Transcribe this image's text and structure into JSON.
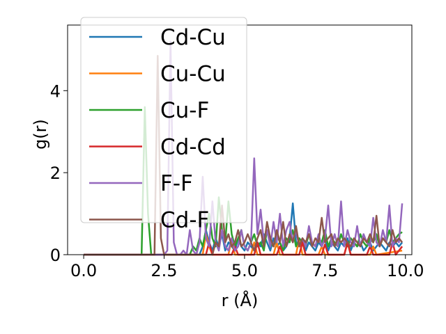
{
  "chart_data": {
    "type": "line",
    "title": "",
    "xlabel": "r (Å)",
    "ylabel": "g(r)",
    "xlim": [
      -0.5,
      10.2
    ],
    "ylim": [
      0,
      5.6
    ],
    "xticks": [
      0.0,
      2.5,
      5.0,
      7.5,
      10.0
    ],
    "xtick_labels": [
      "0.0",
      "2.5",
      "5.0",
      "7.5",
      "10.0"
    ],
    "yticks": [
      0,
      2,
      4
    ],
    "ytick_labels": [
      "0",
      "2",
      "4"
    ],
    "grid": false,
    "legend_position": "upper-left",
    "series": [
      {
        "name": "Cd-Cu",
        "color": "#1f77b4",
        "x": [
          0.0,
          3.6,
          3.7,
          3.8,
          3.9,
          4.0,
          4.1,
          4.2,
          4.3,
          4.4,
          4.5,
          4.6,
          4.7,
          4.8,
          4.9,
          5.0,
          5.1,
          5.2,
          5.3,
          5.4,
          5.5,
          5.6,
          5.7,
          5.8,
          5.9,
          6.0,
          6.1,
          6.2,
          6.3,
          6.4,
          6.5,
          6.6,
          6.7,
          6.8,
          6.9,
          7.0,
          7.1,
          7.2,
          7.3,
          7.4,
          7.5,
          7.6,
          7.7,
          7.8,
          7.9,
          8.0,
          8.1,
          8.2,
          8.3,
          8.4,
          8.5,
          8.6,
          8.7,
          8.8,
          8.9,
          9.0,
          9.1,
          9.2,
          9.3,
          9.4,
          9.5,
          9.6,
          9.7,
          9.8,
          9.9
        ],
        "y": [
          0.0,
          0.0,
          0.2,
          0.6,
          0.3,
          0.1,
          0.4,
          0.2,
          0.5,
          0.1,
          0.3,
          0.2,
          0.1,
          0.4,
          0.2,
          0.1,
          0.3,
          0.2,
          0.1,
          0.3,
          0.2,
          0.5,
          0.3,
          0.1,
          0.4,
          0.2,
          0.3,
          0.1,
          0.2,
          0.4,
          1.25,
          0.3,
          0.2,
          0.4,
          0.1,
          0.3,
          0.2,
          0.1,
          0.3,
          0.2,
          0.4,
          0.1,
          0.3,
          0.2,
          0.1,
          0.3,
          0.2,
          0.4,
          0.1,
          0.3,
          0.2,
          0.3,
          0.1,
          0.2,
          0.3,
          0.1,
          0.2,
          0.3,
          0.2,
          0.1,
          0.3,
          0.2,
          0.3,
          0.2,
          0.3
        ]
      },
      {
        "name": "Cu-Cu",
        "color": "#ff7f0e",
        "x": [
          0.0,
          3.7,
          3.8,
          3.9,
          4.0,
          4.5,
          4.6,
          4.7,
          5.2,
          5.3,
          5.4,
          5.9,
          6.0,
          6.1,
          6.6,
          6.7,
          6.8,
          7.3,
          7.4,
          7.5,
          8.1,
          8.2,
          8.3,
          8.9,
          9.0,
          9.1,
          9.9
        ],
        "y": [
          0.0,
          0.0,
          0.5,
          0.2,
          0.0,
          0.0,
          0.4,
          0.0,
          0.0,
          0.3,
          0.0,
          0.0,
          0.3,
          0.0,
          0.0,
          0.4,
          0.0,
          0.0,
          0.2,
          0.0,
          0.0,
          0.3,
          0.0,
          0.0,
          0.2,
          0.0,
          0.1
        ]
      },
      {
        "name": "Cu-F",
        "color": "#2ca02c",
        "x": [
          0.0,
          1.8,
          1.9,
          2.0,
          2.1,
          2.2,
          3.3,
          3.4,
          3.5,
          3.6,
          3.7,
          3.8,
          3.9,
          4.0,
          4.1,
          4.2,
          4.3,
          4.4,
          4.5,
          4.6,
          4.7,
          4.8,
          4.9,
          5.0,
          5.1,
          5.2,
          5.3,
          5.4,
          5.5,
          5.6,
          5.7,
          5.8,
          5.9,
          6.0,
          6.1,
          6.2,
          6.3,
          6.4,
          6.5,
          6.6,
          6.7,
          6.8,
          6.9,
          7.0,
          7.1,
          7.2,
          7.3,
          7.4,
          7.5,
          7.6,
          7.7,
          7.8,
          7.9,
          8.0,
          8.1,
          8.2,
          8.3,
          8.4,
          8.5,
          8.6,
          8.7,
          8.8,
          8.9,
          9.0,
          9.1,
          9.2,
          9.3,
          9.4,
          9.5,
          9.6,
          9.7,
          9.8,
          9.9
        ],
        "y": [
          0.0,
          0.0,
          3.6,
          1.0,
          0.0,
          0.0,
          0.0,
          0.2,
          0.1,
          0.4,
          0.2,
          0.6,
          1.0,
          0.4,
          0.2,
          1.4,
          0.6,
          0.3,
          1.3,
          0.5,
          0.2,
          0.4,
          0.6,
          0.2,
          0.1,
          0.3,
          0.5,
          0.2,
          0.3,
          0.1,
          0.6,
          0.3,
          0.2,
          0.5,
          0.3,
          0.1,
          0.4,
          0.3,
          0.6,
          0.2,
          0.4,
          0.3,
          0.2,
          0.5,
          0.3,
          0.2,
          0.4,
          0.3,
          0.6,
          0.2,
          0.4,
          0.3,
          0.2,
          0.5,
          0.3,
          0.2,
          0.4,
          0.3,
          0.2,
          0.5,
          0.3,
          0.2,
          0.4,
          0.3,
          0.5,
          0.2,
          0.4,
          0.3,
          0.6,
          0.3,
          0.4,
          0.5,
          0.55
        ]
      },
      {
        "name": "Cd-Cd",
        "color": "#d62728",
        "x": [
          0.0,
          3.8,
          3.9,
          4.0,
          4.6,
          4.7,
          4.8,
          5.3,
          5.4,
          5.5,
          6.0,
          6.1,
          6.2,
          6.7,
          6.8,
          6.9,
          7.4,
          7.5,
          7.6,
          8.1,
          8.2,
          8.3,
          8.8,
          8.9,
          9.0,
          9.5,
          9.6,
          9.7,
          9.9
        ],
        "y": [
          0.0,
          0.0,
          0.3,
          0.0,
          0.0,
          0.2,
          0.0,
          0.0,
          0.3,
          0.0,
          0.0,
          0.2,
          0.0,
          0.0,
          0.3,
          0.0,
          0.0,
          0.25,
          0.0,
          0.0,
          0.3,
          0.0,
          0.0,
          0.2,
          0.0,
          0.0,
          0.3,
          0.0,
          0.2
        ]
      },
      {
        "name": "F-F",
        "color": "#9467bd",
        "x": [
          0.0,
          2.5,
          2.6,
          2.7,
          2.8,
          2.9,
          3.0,
          3.1,
          3.2,
          3.3,
          3.4,
          3.5,
          3.6,
          3.7,
          3.8,
          3.9,
          4.0,
          4.1,
          4.2,
          4.3,
          4.4,
          4.5,
          4.6,
          4.7,
          4.8,
          4.9,
          5.0,
          5.1,
          5.2,
          5.3,
          5.4,
          5.5,
          5.6,
          5.7,
          5.8,
          5.9,
          6.0,
          6.1,
          6.2,
          6.3,
          6.4,
          6.5,
          6.6,
          6.7,
          6.8,
          6.9,
          7.0,
          7.1,
          7.2,
          7.3,
          7.4,
          7.5,
          7.6,
          7.7,
          7.8,
          7.9,
          8.0,
          8.1,
          8.2,
          8.3,
          8.4,
          8.5,
          8.6,
          8.7,
          8.8,
          8.9,
          9.0,
          9.1,
          9.2,
          9.3,
          9.4,
          9.5,
          9.6,
          9.7,
          9.8,
          9.9
        ],
        "y": [
          0.0,
          0.0,
          0.1,
          5.2,
          0.3,
          0.0,
          0.0,
          0.1,
          0.0,
          0.6,
          0.1,
          0.0,
          0.3,
          1.9,
          0.4,
          0.2,
          1.3,
          0.3,
          0.1,
          0.6,
          0.2,
          0.1,
          0.4,
          0.1,
          0.2,
          0.6,
          0.2,
          0.1,
          0.3,
          2.35,
          0.5,
          1.1,
          0.3,
          0.6,
          0.2,
          0.8,
          0.3,
          1.0,
          0.2,
          0.6,
          0.8,
          0.3,
          0.6,
          0.2,
          0.4,
          0.2,
          0.7,
          0.3,
          0.2,
          0.5,
          0.2,
          0.4,
          1.2,
          0.2,
          0.5,
          0.2,
          1.3,
          0.2,
          0.6,
          0.3,
          0.2,
          0.7,
          0.2,
          0.5,
          0.3,
          0.2,
          0.9,
          0.3,
          0.2,
          0.6,
          0.3,
          1.2,
          0.2,
          0.4,
          0.3,
          1.25
        ]
      },
      {
        "name": "Cd-F",
        "color": "#8c564b",
        "x": [
          0.0,
          2.2,
          2.3,
          2.4,
          2.5,
          4.0,
          4.1,
          4.2,
          4.3,
          4.4,
          4.5,
          4.6,
          4.7,
          4.8,
          4.9,
          5.0,
          5.1,
          5.2,
          5.3,
          5.4,
          5.5,
          5.6,
          5.7,
          5.8,
          5.9,
          6.0,
          6.1,
          6.2,
          6.3,
          6.4,
          6.5,
          6.6,
          6.7,
          6.8,
          6.9,
          7.0,
          7.1,
          7.2,
          7.3,
          7.4,
          7.5,
          7.6,
          7.7,
          7.8,
          7.9,
          8.0,
          8.1,
          8.2,
          8.3,
          8.4,
          8.5,
          8.6,
          8.7,
          8.8,
          8.9,
          9.0,
          9.1,
          9.2,
          9.3,
          9.4,
          9.5,
          9.6,
          9.7,
          9.8,
          9.9
        ],
        "y": [
          0.0,
          0.0,
          4.85,
          0.4,
          0.0,
          0.0,
          0.3,
          0.2,
          1.2,
          0.3,
          0.5,
          0.2,
          0.3,
          0.6,
          0.2,
          0.3,
          0.5,
          0.3,
          0.1,
          0.4,
          0.6,
          0.2,
          0.8,
          0.4,
          0.2,
          0.6,
          0.3,
          0.8,
          0.2,
          0.5,
          0.3,
          0.7,
          0.2,
          0.4,
          0.3,
          0.5,
          0.2,
          0.4,
          0.3,
          0.9,
          0.3,
          0.4,
          0.5,
          0.2,
          0.4,
          0.3,
          0.4,
          0.3,
          0.2,
          0.4,
          0.3,
          0.2,
          0.4,
          0.3,
          0.5,
          0.3,
          0.95,
          0.2,
          0.4,
          0.3,
          0.2,
          0.6,
          0.3,
          0.4,
          0.3
        ]
      }
    ]
  }
}
